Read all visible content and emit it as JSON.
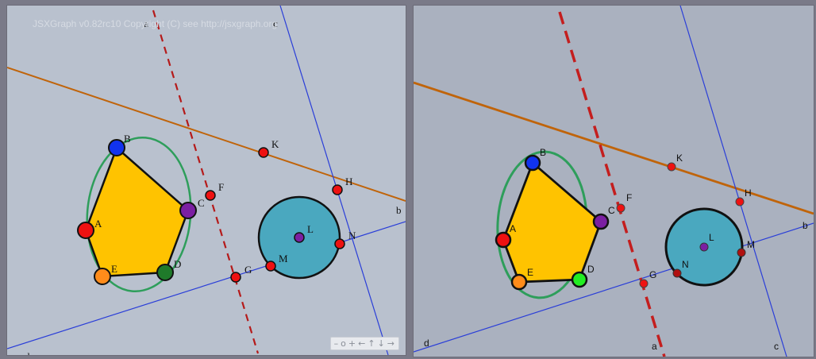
{
  "left_board": {
    "copyright": "JSXGraph v0.82rc10 Copyright (C) see http://jsxgraph.org",
    "nav_buttons": [
      "–",
      "o",
      "+",
      "←",
      "↑",
      "↓",
      "→"
    ],
    "labels": {
      "A": "A",
      "B": "B",
      "C": "C",
      "D": "D",
      "E": "E",
      "F": "F",
      "G": "G",
      "H": "H",
      "K": "K",
      "L": "L",
      "M": "M",
      "N": "N",
      "a": "a",
      "b": "b",
      "c": "c",
      "d": "d"
    }
  },
  "right_board": {
    "labels": {
      "A": "A",
      "B": "B",
      "C": "C",
      "D": "D",
      "E": "E",
      "F": "F",
      "G": "G",
      "H": "H",
      "K": "K",
      "L": "L",
      "M": "M",
      "N": "N",
      "a": "a",
      "b": "b",
      "c": "c",
      "d": "d"
    }
  },
  "colors": {
    "polygon_fill": "#ffc300",
    "ellipse": "#2e9e5b",
    "circle_fill": "#4aa8bf",
    "line_b": "#c0640a",
    "lines_cd": "#2a3ed8",
    "line_a_dashed": "#c41e1e",
    "point_red": "#ee1111",
    "point_blue": "#1133ee",
    "point_purple": "#7b1fa2",
    "point_orange": "#ff8c1a"
  }
}
